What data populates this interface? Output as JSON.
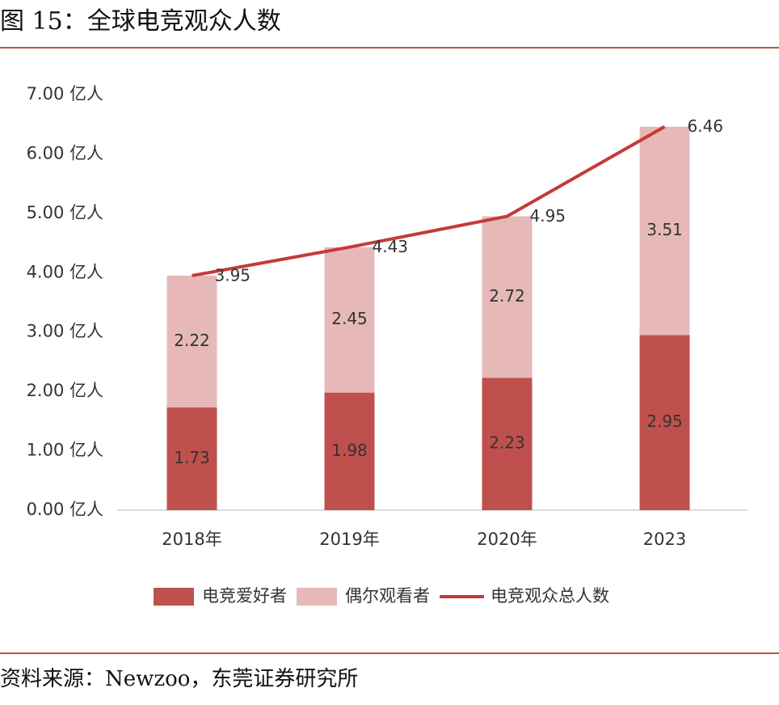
{
  "chart_data": {
    "type": "stacked-bar-line",
    "title": "图 15：全球电竞观众人数",
    "source": "资料来源：Newzoo，东莞证券研究所",
    "categories": [
      "2018年",
      "2019年",
      "2020年",
      "2023"
    ],
    "series": [
      {
        "name": "电竞爱好者",
        "type": "bar",
        "color": "#c0504d",
        "values": [
          1.73,
          1.98,
          2.23,
          2.95
        ]
      },
      {
        "name": "偶尔观看者",
        "type": "bar",
        "color": "#e6b9b8",
        "values": [
          2.22,
          2.45,
          2.72,
          3.51
        ]
      },
      {
        "name": "电竞观众总人数",
        "type": "line",
        "color": "#c43a38",
        "values": [
          3.95,
          4.43,
          4.95,
          6.46
        ]
      }
    ],
    "ylim": [
      0,
      7
    ],
    "yticks": [
      {
        "value": 0,
        "label": "0.00 亿人"
      },
      {
        "value": 1,
        "label": "1.00 亿人"
      },
      {
        "value": 2,
        "label": "2.00 亿人"
      },
      {
        "value": 3,
        "label": "3.00 亿人"
      },
      {
        "value": 4,
        "label": "4.00 亿人"
      },
      {
        "value": 5,
        "label": "5.00 亿人"
      },
      {
        "value": 6,
        "label": "6.00 亿人"
      },
      {
        "value": 7,
        "label": "7.00 亿人"
      }
    ],
    "grid": false
  }
}
